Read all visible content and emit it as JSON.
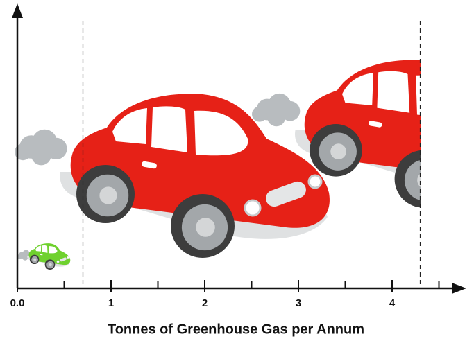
{
  "chart_data": {
    "type": "pictogram",
    "x_label": "Tonnes of Greenhouse Gas per Annum",
    "values": [
      0.7,
      4.3
    ],
    "colors": [
      "#6fd12e",
      "#e62117"
    ],
    "xlim": [
      0,
      4.6
    ],
    "xticks": [
      {
        "value": 0,
        "label": "0.0"
      },
      1,
      2,
      3,
      4
    ],
    "minor_xticks": [
      0.5,
      1.5,
      2.5,
      3.5,
      4.5
    ]
  }
}
